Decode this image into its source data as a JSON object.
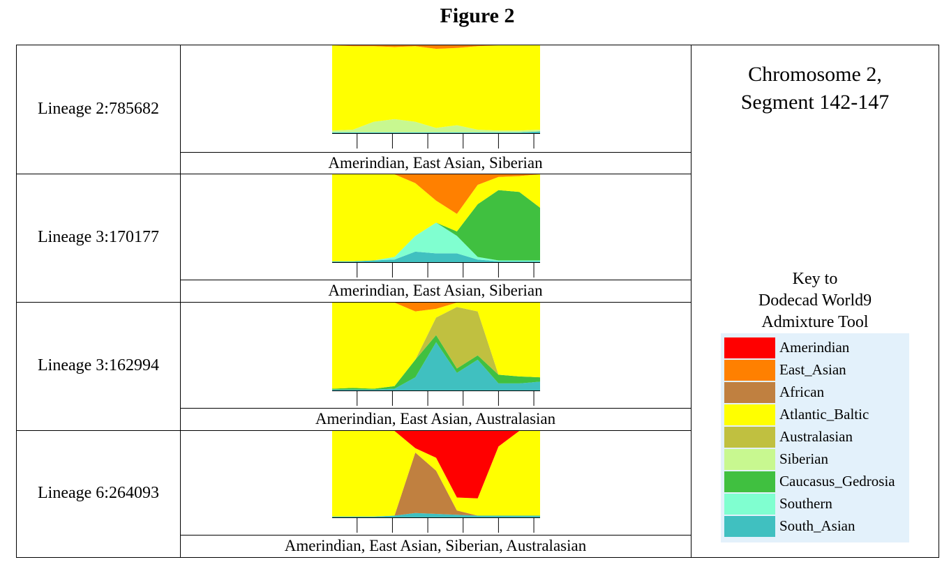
{
  "figure_title": "Figure 2",
  "chromosome": {
    "line1": "Chromosome 2,",
    "line2": "Segment 142-147"
  },
  "key_title": {
    "line1": "Key to",
    "line2": "Dodecad World9",
    "line3": "Admixture Tool"
  },
  "legend": [
    {
      "name": "Amerindian",
      "color": "#ff0000"
    },
    {
      "name": "East_Asian",
      "color": "#ff8000"
    },
    {
      "name": "African",
      "color": "#c08040"
    },
    {
      "name": "Atlantic_Baltic",
      "color": "#ffff00"
    },
    {
      "name": "Australasian",
      "color": "#c0c040"
    },
    {
      "name": "Siberian",
      "color": "#c8f890"
    },
    {
      "name": "Caucasus_Gedrosia",
      "color": "#40c040"
    },
    {
      "name": "Southern",
      "color": "#80ffd0"
    },
    {
      "name": "South_Asian",
      "color": "#40c0c0"
    }
  ],
  "chart_data": [
    {
      "type": "area",
      "stacked": true,
      "ylim": [
        0,
        100
      ],
      "row_label": "Lineage 2:785682",
      "caption": "Amerindian, East Asian, Siberian",
      "x": [
        0,
        0.1,
        0.2,
        0.3,
        0.4,
        0.5,
        0.6,
        0.7,
        0.8,
        0.9,
        1.0
      ],
      "series": [
        {
          "name": "South_Asian",
          "values": [
            1,
            1,
            1,
            1,
            1,
            1,
            1,
            1,
            1,
            1,
            2
          ]
        },
        {
          "name": "Siberian",
          "values": [
            2,
            3,
            12,
            15,
            12,
            5,
            8,
            3,
            2,
            2,
            2
          ]
        },
        {
          "name": "Atlantic_Baltic",
          "values": [
            97,
            95,
            86,
            82,
            86,
            90,
            88,
            95,
            97,
            97,
            96
          ]
        },
        {
          "name": "East_Asian",
          "values": [
            0,
            1,
            1,
            2,
            1,
            4,
            3,
            1,
            0,
            0,
            0
          ]
        }
      ]
    },
    {
      "type": "area",
      "stacked": true,
      "ylim": [
        0,
        100
      ],
      "row_label": "Lineage 3:170177",
      "caption": "Amerindian, East Asian, Siberian",
      "x": [
        0,
        0.1,
        0.2,
        0.3,
        0.4,
        0.5,
        0.6,
        0.7,
        0.8,
        0.9,
        1.0
      ],
      "series": [
        {
          "name": "South_Asian",
          "values": [
            1,
            1,
            2,
            3,
            12,
            10,
            10,
            3,
            1,
            1,
            1
          ]
        },
        {
          "name": "Southern",
          "values": [
            0,
            0,
            0,
            3,
            18,
            35,
            20,
            3,
            1,
            1,
            1
          ]
        },
        {
          "name": "Caucasus_Gedrosia",
          "values": [
            0,
            0,
            0,
            0,
            0,
            0,
            5,
            60,
            80,
            78,
            60
          ]
        },
        {
          "name": "Atlantic_Baltic",
          "values": [
            99,
            99,
            98,
            94,
            60,
            25,
            20,
            22,
            15,
            18,
            38
          ]
        },
        {
          "name": "East_Asian",
          "values": [
            0,
            0,
            0,
            0,
            10,
            30,
            45,
            12,
            3,
            2,
            0
          ]
        }
      ]
    },
    {
      "type": "area",
      "stacked": true,
      "ylim": [
        0,
        100
      ],
      "row_label": "Lineage 3:162994",
      "caption": "Amerindian, East Asian, Australasian",
      "x": [
        0,
        0.1,
        0.2,
        0.3,
        0.4,
        0.5,
        0.6,
        0.7,
        0.8,
        0.9,
        1.0
      ],
      "series": [
        {
          "name": "South_Asian",
          "values": [
            1,
            1,
            1,
            2,
            15,
            55,
            20,
            35,
            8,
            8,
            10
          ]
        },
        {
          "name": "Caucasus_Gedrosia",
          "values": [
            1,
            2,
            1,
            3,
            20,
            8,
            5,
            5,
            10,
            8,
            5
          ]
        },
        {
          "name": "Australasian",
          "values": [
            0,
            0,
            0,
            0,
            0,
            20,
            70,
            50,
            0,
            0,
            0
          ]
        },
        {
          "name": "Atlantic_Baltic",
          "values": [
            98,
            97,
            98,
            95,
            55,
            10,
            5,
            10,
            82,
            84,
            85
          ]
        },
        {
          "name": "East_Asian",
          "values": [
            0,
            0,
            0,
            0,
            10,
            7,
            0,
            0,
            0,
            0,
            0
          ]
        }
      ]
    },
    {
      "type": "area",
      "stacked": true,
      "ylim": [
        0,
        100
      ],
      "row_label": "Lineage 6:264093",
      "caption": "Amerindian, East Asian, Siberian, Australasian",
      "x": [
        0,
        0.1,
        0.2,
        0.3,
        0.4,
        0.5,
        0.6,
        0.7,
        0.8,
        0.9,
        1.0
      ],
      "series": [
        {
          "name": "South_Asian",
          "values": [
            1,
            1,
            1,
            2,
            5,
            4,
            3,
            2,
            2,
            2,
            2
          ]
        },
        {
          "name": "African",
          "values": [
            0,
            0,
            0,
            0,
            70,
            50,
            5,
            0,
            0,
            0,
            0
          ]
        },
        {
          "name": "Atlantic_Baltic",
          "values": [
            99,
            99,
            99,
            98,
            5,
            15,
            15,
            20,
            80,
            98,
            98
          ]
        },
        {
          "name": "Amerindian",
          "values": [
            0,
            0,
            0,
            0,
            20,
            31,
            77,
            78,
            18,
            0,
            0
          ]
        }
      ]
    }
  ]
}
